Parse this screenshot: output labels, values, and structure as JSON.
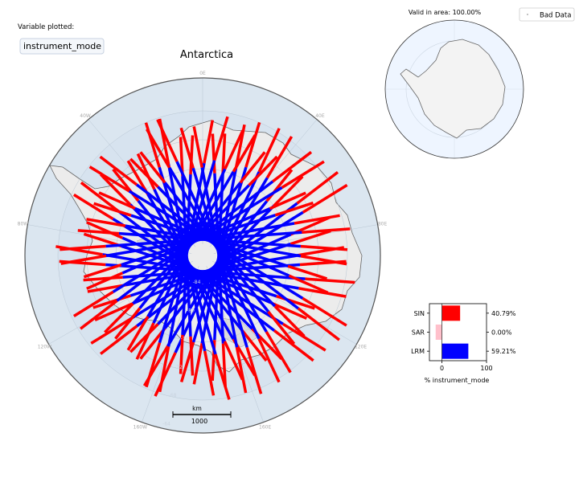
{
  "header": {
    "variable_caption": "Variable plotted:",
    "variable_name": "instrument_mode"
  },
  "map": {
    "title": "Antarctica",
    "lon_labels": [
      "0E",
      "40E",
      "80E",
      "120E",
      "160E",
      "160W",
      "120W",
      "80W",
      "40W"
    ],
    "lat_labels": [
      "-84",
      "-80",
      "-76",
      "-72",
      "-68",
      "-64"
    ],
    "scale_unit": "km",
    "scale_value": "1000"
  },
  "overview": {
    "valid_area_text": "Valid in area: 100.00%",
    "legend_label": "Bad Data"
  },
  "colors": {
    "SIN": "#ff0000",
    "SAR": "#ffc0cb",
    "LRM": "#0000ff",
    "ocean": "#dbe6f0",
    "land": "#e9e9e9",
    "overview_ocean": "#eef5ff",
    "overview_land": "#f3f3f3"
  },
  "chart_data": {
    "type": "bar",
    "orientation": "horizontal",
    "categories": [
      "SIN",
      "SAR",
      "LRM"
    ],
    "values": [
      40.79,
      0.0,
      59.21
    ],
    "value_labels": [
      "40.79%",
      "0.00%",
      "59.21%"
    ],
    "xlabel": "% instrument_mode",
    "xlim": [
      -28,
      100
    ],
    "xticks": [
      "0",
      "100"
    ]
  }
}
